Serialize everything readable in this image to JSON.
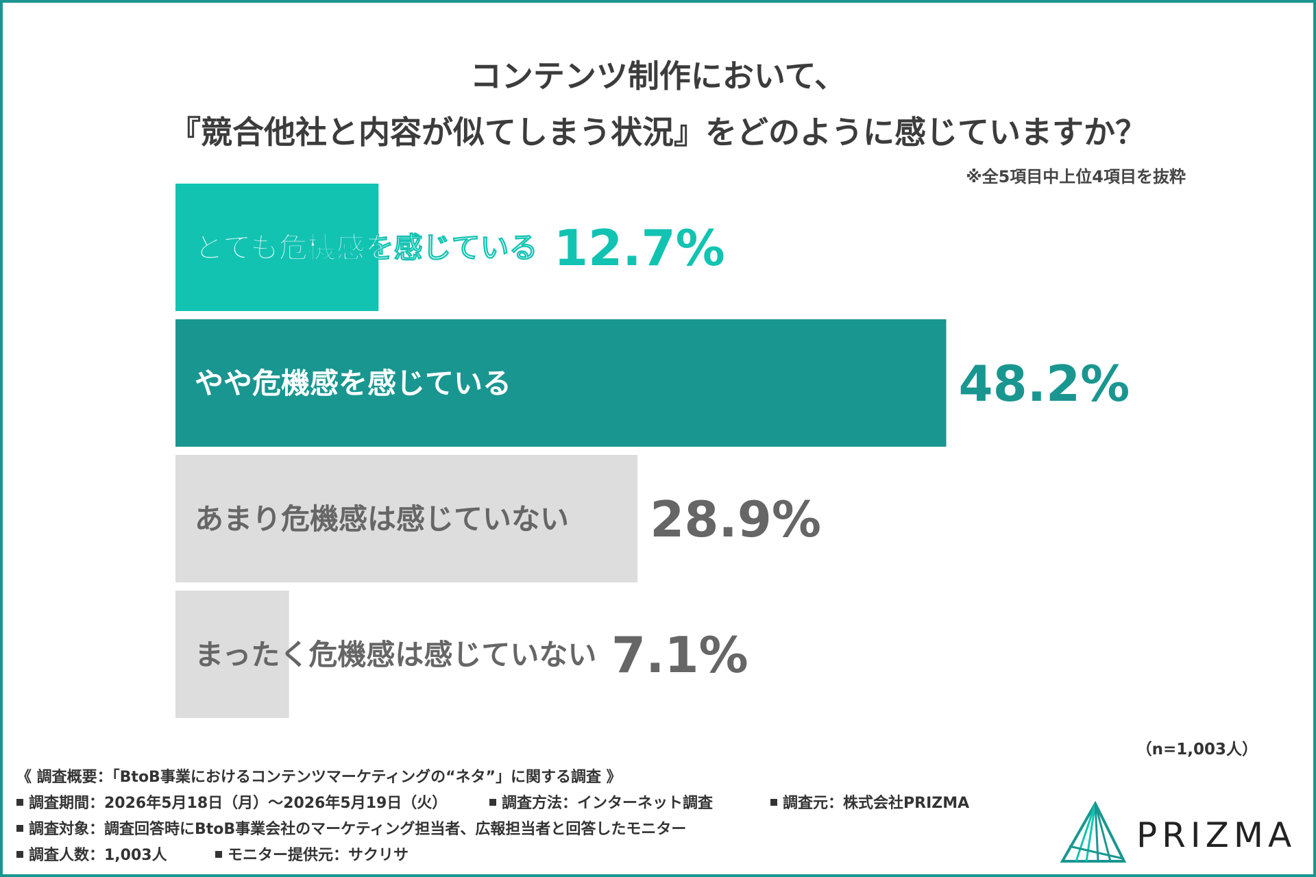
{
  "title_line1": "コンテンツ制作において、",
  "title_line2": "『競合他社と内容が似てしまう状況』をどのように感じていますか？",
  "note": "※全5項目中上位4項目を抜粋",
  "sample_size": "（n=1,003人）",
  "survey": {
    "overview": "《 調査概要：「BtoB事業におけるコンテンツマーケティングの“ネタ”」に関する調査 》",
    "period": "調査期間：2026年5月18日（月）～2026年5月19日（火）",
    "method": "調査方法：インターネット調査",
    "source": "調査元：株式会社PRIZMA",
    "target": "調査対象：調査回答時にBtoB事業会社のマーケティング担当者、広報担当者と回答したモニター",
    "count": "調査人数：1,003人",
    "provider": "モニター提供元：サクリサ"
  },
  "logo": {
    "name": "PRIZMA"
  },
  "chart_data": {
    "type": "bar",
    "orientation": "horizontal",
    "categories": [
      "とても危機感を感じている",
      "やや危機感を感じている",
      "あまり危機感は感じていない",
      "まったく危機感は感じていない"
    ],
    "values": [
      12.7,
      48.2,
      28.9,
      7.1
    ],
    "value_labels": [
      "12.7%",
      "48.2%",
      "28.9%",
      "7.1%"
    ],
    "unit": "%",
    "colors": [
      "#12c3b2",
      "#1a9690",
      "#dddddd",
      "#dddddd"
    ],
    "label_colors": [
      "#ffffff",
      "#ffffff",
      "#666666",
      "#666666"
    ],
    "value_colors": [
      "#12c3b2",
      "#1a9690",
      "#666666",
      "#666666"
    ],
    "xlim": [
      0,
      100
    ],
    "grid": false
  }
}
